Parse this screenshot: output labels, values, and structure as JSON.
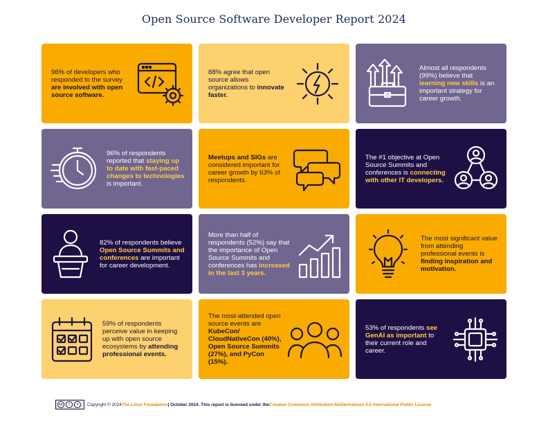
{
  "title": "Open Source Software Developer Report 2024",
  "cards": [
    {
      "t1": "96% of developers who responded to the survey ",
      "b1": "are involved with open source software."
    },
    {
      "t1": "88% agree that open source allows organizations to ",
      "b1": "innovate faster."
    },
    {
      "t1": "Almost all respondents (99%) believe that ",
      "h1": "learning new skills",
      "t2": " is an important strategy for career growth."
    },
    {
      "t1": "96% of respondents reported that ",
      "h1": "staying up to date with fast-paced changes to technologies",
      "t2": " is important."
    },
    {
      "b1": "Meetups and SIGs",
      "t1": " are considered important for career growth by 63% of respondents."
    },
    {
      "t1": "The #1 objective at Open Source Summits and conferences is ",
      "h1": "connecting with other IT developers."
    },
    {
      "t1": "82% of respondents believe ",
      "h1": "Open Source Summits and conferences",
      "t2": " are important for career development."
    },
    {
      "t1": "More than half of respondents (52%) say that the importance of Open Source Summits and conferences has ",
      "h1": "increased in the last 3 years."
    },
    {
      "t1": "The most significant value from attending professional events is ",
      "b1": "finding inspiration and motivation."
    },
    {
      "t1": "59% of respondents perceive value in keeping up with open source ecosystems by ",
      "b1": "attending professional events."
    },
    {
      "t1": "The most-attended open source events are ",
      "b1": "KubeCon/ CloudNativeCon (40%), Open Source Summits (27%), and PyCon (15%)."
    },
    {
      "t1": "53% of respondents ",
      "h1": "see GenAI as important",
      "t2": " to their current role and career."
    }
  ],
  "icons": [
    "code-window-gear-icon",
    "lightning-bulb-icon",
    "briefcase-growth-icon",
    "stopwatch-icon",
    "chat-bubbles-icon",
    "people-network-icon",
    "speaker-podium-icon",
    "growth-bar-chart-icon",
    "light-bulb-icon",
    "calendar-check-icon",
    "group-people-icon",
    "ai-chip-icon"
  ],
  "colors": {
    "amber": "#f9ab00",
    "yellow": "#fdd16d",
    "purple": "#716690",
    "navy": "#1e1045",
    "title": "#1e2a5a"
  },
  "footer": {
    "license_badge": "cc by nd",
    "prefix": "Copyright © 2024 ",
    "org": "The Linux Foundation",
    "middle": " | October 2024. This report is licensed under the ",
    "license": "Creative Commons Attribution-NoDerivatives 4.0 International Public License"
  }
}
